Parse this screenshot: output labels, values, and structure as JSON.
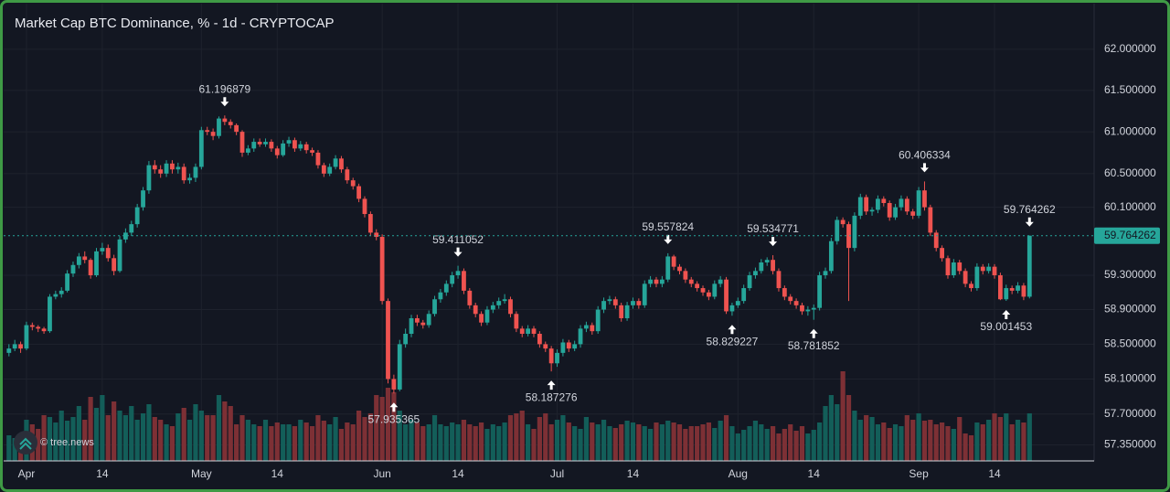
{
  "chart_data": {
    "type": "candlestick",
    "title": "Market Cap BTC Dominance, % - 1d - CRYPTOCAP",
    "watermark": "© tree.news",
    "log_scale": true,
    "grid": true,
    "up_color": "#26a69a",
    "down_color": "#ef5350",
    "volume_up_color": "#135e59",
    "volume_down_color": "#7d3035",
    "last_price_color": "#26a69a",
    "ylim": [
      57.17,
      62.56
    ],
    "yticks": [
      {
        "value": 62,
        "label": "62.000000"
      },
      {
        "value": 61.5,
        "label": "61.500000"
      },
      {
        "value": 61,
        "label": "61.000000"
      },
      {
        "value": 60.5,
        "label": "60.500000"
      },
      {
        "value": 60.1,
        "label": "60.100000"
      },
      {
        "value": 59.3,
        "label": "59.300000"
      },
      {
        "value": 58.9,
        "label": "58.900000"
      },
      {
        "value": 58.5,
        "label": "58.500000"
      },
      {
        "value": 58.1,
        "label": "58.100000"
      },
      {
        "value": 57.7,
        "label": "57.700000"
      },
      {
        "value": 57.35,
        "label": "57.350000"
      }
    ],
    "categories": [
      null,
      null,
      null,
      "Apr",
      null,
      null,
      null,
      null,
      null,
      null,
      null,
      null,
      null,
      null,
      null,
      null,
      "14",
      null,
      null,
      null,
      null,
      null,
      null,
      null,
      null,
      null,
      null,
      null,
      null,
      null,
      null,
      null,
      null,
      "May",
      null,
      null,
      null,
      null,
      null,
      null,
      null,
      null,
      null,
      null,
      null,
      null,
      "14",
      null,
      null,
      null,
      null,
      null,
      null,
      null,
      null,
      null,
      null,
      null,
      null,
      null,
      null,
      null,
      null,
      null,
      "Jun",
      null,
      null,
      null,
      null,
      null,
      null,
      null,
      null,
      null,
      null,
      null,
      null,
      "14",
      null,
      null,
      null,
      null,
      null,
      null,
      null,
      null,
      null,
      null,
      null,
      null,
      null,
      null,
      null,
      null,
      "Jul",
      null,
      null,
      null,
      null,
      null,
      null,
      null,
      null,
      null,
      null,
      null,
      null,
      "14",
      null,
      null,
      null,
      null,
      null,
      null,
      null,
      null,
      null,
      null,
      null,
      null,
      null,
      null,
      null,
      null,
      null,
      "Aug",
      null,
      null,
      null,
      null,
      null,
      null,
      null,
      null,
      null,
      null,
      null,
      null,
      "14",
      null,
      null,
      null,
      null,
      null,
      null,
      null,
      null,
      null,
      null,
      null,
      null,
      null,
      null,
      null,
      null,
      null,
      "Sep",
      null,
      null,
      null,
      null,
      null,
      null,
      null,
      null,
      null,
      null,
      null,
      null,
      "14",
      null,
      null,
      null,
      null,
      null,
      null
    ],
    "candles": [
      [
        58.4,
        58.5,
        58.36,
        58.45
      ],
      [
        58.45,
        58.55,
        58.42,
        58.5
      ],
      [
        58.5,
        58.53,
        58.4,
        58.45
      ],
      [
        58.45,
        58.76,
        58.43,
        58.72
      ],
      [
        58.72,
        58.75,
        58.66,
        58.7
      ],
      [
        58.7,
        58.72,
        58.64,
        58.68
      ],
      [
        58.68,
        58.7,
        58.62,
        58.65
      ],
      [
        58.65,
        59.08,
        58.63,
        59.05
      ],
      [
        59.05,
        59.12,
        59.02,
        59.08
      ],
      [
        59.08,
        59.16,
        59.04,
        59.12
      ],
      [
        59.12,
        59.36,
        59.1,
        59.32
      ],
      [
        59.32,
        59.46,
        59.28,
        59.42
      ],
      [
        59.42,
        59.56,
        59.38,
        59.52
      ],
      [
        59.52,
        59.58,
        59.44,
        59.48
      ],
      [
        59.48,
        59.5,
        59.26,
        59.3
      ],
      [
        59.3,
        59.62,
        59.28,
        59.58
      ],
      [
        59.58,
        59.68,
        59.54,
        59.62
      ],
      [
        59.62,
        59.66,
        59.46,
        59.5
      ],
      [
        59.5,
        59.54,
        59.3,
        59.35
      ],
      [
        59.35,
        59.76,
        59.33,
        59.72
      ],
      [
        59.72,
        59.85,
        59.68,
        59.8
      ],
      [
        59.8,
        59.94,
        59.76,
        59.9
      ],
      [
        59.9,
        60.14,
        59.86,
        60.1
      ],
      [
        60.1,
        60.34,
        60.06,
        60.3
      ],
      [
        60.3,
        60.65,
        60.26,
        60.6
      ],
      [
        60.6,
        60.66,
        60.5,
        60.55
      ],
      [
        60.55,
        60.6,
        60.45,
        60.5
      ],
      [
        60.5,
        60.66,
        60.46,
        60.62
      ],
      [
        60.62,
        60.66,
        60.5,
        60.55
      ],
      [
        60.55,
        60.63,
        60.5,
        60.58
      ],
      [
        60.58,
        60.62,
        60.38,
        60.42
      ],
      [
        60.42,
        60.5,
        60.38,
        60.45
      ],
      [
        60.45,
        60.62,
        60.4,
        60.58
      ],
      [
        60.58,
        61.06,
        60.55,
        61.02
      ],
      [
        61.02,
        61.06,
        60.96,
        61.0
      ],
      [
        61.0,
        61.04,
        60.9,
        60.95
      ],
      [
        60.95,
        61.185,
        60.92,
        61.16
      ],
      [
        61.16,
        61.196879,
        61.08,
        61.12
      ],
      [
        61.12,
        61.15,
        61.04,
        61.08
      ],
      [
        61.08,
        61.1,
        60.96,
        61.0
      ],
      [
        61.0,
        61.02,
        60.7,
        60.75
      ],
      [
        60.75,
        60.84,
        60.72,
        60.8
      ],
      [
        60.8,
        60.92,
        60.76,
        60.88
      ],
      [
        60.88,
        60.92,
        60.82,
        60.85
      ],
      [
        60.85,
        60.92,
        60.82,
        60.88
      ],
      [
        60.88,
        60.91,
        60.76,
        60.8
      ],
      [
        60.8,
        60.83,
        60.68,
        60.72
      ],
      [
        60.72,
        60.9,
        60.7,
        60.86
      ],
      [
        60.86,
        60.94,
        60.82,
        60.9
      ],
      [
        60.9,
        60.93,
        60.76,
        60.8
      ],
      [
        60.8,
        60.89,
        60.77,
        60.85
      ],
      [
        60.85,
        60.88,
        60.74,
        60.78
      ],
      [
        60.78,
        60.81,
        60.71,
        60.75
      ],
      [
        60.75,
        60.78,
        60.56,
        60.6
      ],
      [
        60.6,
        60.63,
        60.46,
        60.5
      ],
      [
        60.5,
        60.62,
        60.47,
        60.58
      ],
      [
        60.58,
        60.72,
        60.55,
        60.68
      ],
      [
        60.68,
        60.71,
        60.51,
        60.55
      ],
      [
        60.55,
        60.58,
        60.38,
        60.42
      ],
      [
        60.42,
        60.45,
        60.31,
        60.35
      ],
      [
        60.35,
        60.38,
        60.16,
        60.2
      ],
      [
        60.2,
        60.23,
        59.98,
        60.02
      ],
      [
        60.02,
        60.05,
        59.76,
        59.8
      ],
      [
        59.8,
        59.84,
        59.71,
        59.75
      ],
      [
        59.75,
        59.78,
        58.96,
        59.0
      ],
      [
        59.0,
        59.03,
        58.05,
        58.1
      ],
      [
        58.1,
        58.15,
        57.935365,
        57.98
      ],
      [
        57.98,
        58.55,
        57.96,
        58.5
      ],
      [
        58.5,
        58.68,
        58.46,
        58.62
      ],
      [
        58.62,
        58.84,
        58.58,
        58.8
      ],
      [
        58.8,
        58.84,
        58.71,
        58.75
      ],
      [
        58.75,
        58.78,
        58.68,
        58.72
      ],
      [
        58.72,
        58.89,
        58.69,
        58.85
      ],
      [
        58.85,
        59.06,
        58.82,
        59.02
      ],
      [
        59.02,
        59.14,
        58.98,
        59.1
      ],
      [
        59.1,
        59.24,
        59.06,
        59.2
      ],
      [
        59.2,
        59.34,
        59.16,
        59.3
      ],
      [
        59.3,
        59.411052,
        59.26,
        59.35
      ],
      [
        59.35,
        59.38,
        59.08,
        59.12
      ],
      [
        59.12,
        59.15,
        58.91,
        58.95
      ],
      [
        58.95,
        58.98,
        58.81,
        58.85
      ],
      [
        58.85,
        58.88,
        58.71,
        58.75
      ],
      [
        58.75,
        58.94,
        58.72,
        58.9
      ],
      [
        58.9,
        58.99,
        58.86,
        58.95
      ],
      [
        58.95,
        59.04,
        58.91,
        59.0
      ],
      [
        59.0,
        59.08,
        58.97,
        59.02
      ],
      [
        59.02,
        59.05,
        58.81,
        58.85
      ],
      [
        58.85,
        58.88,
        58.64,
        58.68
      ],
      [
        58.68,
        58.71,
        58.58,
        58.62
      ],
      [
        58.62,
        58.72,
        58.59,
        58.68
      ],
      [
        58.68,
        58.71,
        58.58,
        58.62
      ],
      [
        58.62,
        58.65,
        58.46,
        58.5
      ],
      [
        58.5,
        58.53,
        58.41,
        58.45
      ],
      [
        58.45,
        58.48,
        58.187276,
        58.28
      ],
      [
        58.28,
        58.44,
        58.24,
        58.4
      ],
      [
        58.4,
        58.56,
        58.36,
        58.52
      ],
      [
        58.52,
        58.55,
        58.41,
        58.45
      ],
      [
        58.45,
        58.54,
        58.42,
        58.5
      ],
      [
        58.5,
        58.72,
        58.46,
        58.68
      ],
      [
        58.68,
        58.76,
        58.64,
        58.72
      ],
      [
        58.72,
        58.75,
        58.61,
        58.65
      ],
      [
        58.65,
        58.94,
        58.62,
        58.9
      ],
      [
        58.9,
        59.04,
        58.86,
        59.0
      ],
      [
        59.0,
        59.06,
        58.96,
        59.02
      ],
      [
        59.02,
        59.05,
        58.91,
        58.95
      ],
      [
        58.95,
        58.98,
        58.76,
        58.8
      ],
      [
        58.8,
        58.99,
        58.77,
        58.95
      ],
      [
        58.95,
        59.04,
        58.91,
        59.0
      ],
      [
        59.0,
        59.03,
        58.91,
        58.95
      ],
      [
        58.95,
        59.24,
        58.92,
        59.2
      ],
      [
        59.2,
        59.29,
        59.16,
        59.25
      ],
      [
        59.25,
        59.28,
        59.16,
        59.2
      ],
      [
        59.2,
        59.29,
        59.16,
        59.25
      ],
      [
        59.25,
        59.557824,
        59.22,
        59.52
      ],
      [
        59.52,
        59.54,
        59.36,
        59.4
      ],
      [
        59.4,
        59.43,
        59.31,
        59.35
      ],
      [
        59.35,
        59.38,
        59.21,
        59.25
      ],
      [
        59.25,
        59.28,
        59.16,
        59.2
      ],
      [
        59.2,
        59.23,
        59.11,
        59.15
      ],
      [
        59.15,
        59.18,
        59.06,
        59.1
      ],
      [
        59.1,
        59.13,
        59.01,
        59.05
      ],
      [
        59.05,
        59.24,
        59.02,
        59.2
      ],
      [
        59.2,
        59.29,
        59.16,
        59.25
      ],
      [
        59.25,
        59.28,
        58.85,
        58.88
      ],
      [
        58.88,
        58.98,
        58.829227,
        58.95
      ],
      [
        58.95,
        59.04,
        58.92,
        59.0
      ],
      [
        59.0,
        59.19,
        58.97,
        59.15
      ],
      [
        59.15,
        59.34,
        59.12,
        59.3
      ],
      [
        59.3,
        59.39,
        59.26,
        59.35
      ],
      [
        59.35,
        59.49,
        59.32,
        59.45
      ],
      [
        59.45,
        59.51,
        59.41,
        59.48
      ],
      [
        59.48,
        59.534771,
        59.31,
        59.35
      ],
      [
        59.35,
        59.38,
        59.11,
        59.15
      ],
      [
        59.15,
        59.18,
        59.01,
        59.05
      ],
      [
        59.05,
        59.08,
        58.96,
        59.0
      ],
      [
        59.0,
        59.03,
        58.91,
        58.95
      ],
      [
        58.95,
        58.98,
        58.84,
        58.88
      ],
      [
        58.88,
        58.94,
        58.83,
        58.9
      ],
      [
        58.9,
        58.96,
        58.781852,
        58.92
      ],
      [
        58.92,
        59.34,
        58.89,
        59.3
      ],
      [
        59.3,
        59.39,
        59.26,
        59.35
      ],
      [
        59.35,
        59.74,
        59.32,
        59.7
      ],
      [
        59.7,
        59.99,
        59.66,
        59.95
      ],
      [
        59.95,
        59.98,
        59.86,
        59.9
      ],
      [
        59.9,
        59.93,
        59.0,
        59.62
      ],
      [
        59.62,
        60.04,
        59.58,
        60.0
      ],
      [
        60.0,
        60.26,
        59.96,
        60.22
      ],
      [
        60.22,
        60.25,
        60.01,
        60.05
      ],
      [
        60.05,
        60.1,
        60.0,
        60.07
      ],
      [
        60.07,
        60.24,
        60.03,
        60.2
      ],
      [
        60.2,
        60.23,
        60.11,
        60.15
      ],
      [
        60.15,
        60.18,
        59.94,
        59.98
      ],
      [
        59.98,
        60.14,
        59.95,
        60.1
      ],
      [
        60.1,
        60.24,
        60.06,
        60.2
      ],
      [
        60.2,
        60.23,
        60.01,
        60.05
      ],
      [
        60.05,
        60.08,
        59.96,
        60.0
      ],
      [
        60.0,
        60.34,
        59.97,
        60.3
      ],
      [
        60.3,
        60.406334,
        60.06,
        60.1
      ],
      [
        60.1,
        60.13,
        59.76,
        59.8
      ],
      [
        59.8,
        59.83,
        59.58,
        59.62
      ],
      [
        59.62,
        59.65,
        59.46,
        59.5
      ],
      [
        59.5,
        59.53,
        59.26,
        59.3
      ],
      [
        59.3,
        59.49,
        59.27,
        59.45
      ],
      [
        59.45,
        59.48,
        59.31,
        59.35
      ],
      [
        59.35,
        59.38,
        59.16,
        59.2
      ],
      [
        59.2,
        59.23,
        59.11,
        59.15
      ],
      [
        59.15,
        59.44,
        59.12,
        59.4
      ],
      [
        59.4,
        59.43,
        59.31,
        59.35
      ],
      [
        59.35,
        59.44,
        59.32,
        59.4
      ],
      [
        59.4,
        59.43,
        59.26,
        59.3
      ],
      [
        59.3,
        59.33,
        59.01,
        59.02
      ],
      [
        59.02,
        59.19,
        59.001453,
        59.15
      ],
      [
        59.15,
        59.18,
        59.08,
        59.12
      ],
      [
        59.12,
        59.22,
        59.09,
        59.18
      ],
      [
        59.18,
        59.21,
        59.01,
        59.05
      ],
      [
        59.05,
        59.764262,
        59.03,
        59.764262
      ]
    ],
    "volume": [
      28,
      25,
      30,
      45,
      40,
      35,
      50,
      48,
      42,
      55,
      44,
      48,
      60,
      45,
      70,
      58,
      72,
      50,
      65,
      55,
      50,
      60,
      45,
      52,
      62,
      48,
      45,
      40,
      38,
      52,
      58,
      45,
      62,
      55,
      50,
      50,
      72,
      65,
      60,
      40,
      50,
      45,
      40,
      38,
      45,
      38,
      42,
      40,
      40,
      38,
      45,
      42,
      38,
      50,
      44,
      40,
      48,
      35,
      42,
      40,
      55,
      48,
      52,
      72,
      70,
      80,
      75,
      55,
      40,
      45,
      42,
      38,
      40,
      50,
      40,
      38,
      42,
      40,
      45,
      40,
      38,
      42,
      35,
      40,
      38,
      42,
      50,
      52,
      55,
      40,
      35,
      48,
      52,
      40,
      45,
      50,
      42,
      38,
      35,
      48,
      42,
      40,
      45,
      38,
      36,
      40,
      44,
      42,
      40,
      38,
      35,
      42,
      40,
      44,
      42,
      40,
      35,
      38,
      38,
      40,
      42,
      36,
      44,
      50,
      38,
      30,
      34,
      38,
      44,
      40,
      35,
      38,
      30,
      35,
      40,
      33,
      38,
      30,
      34,
      42,
      60,
      72,
      62,
      98,
      72,
      55,
      45,
      50,
      48,
      40,
      42,
      36,
      40,
      38,
      50,
      45,
      52,
      44,
      45,
      40,
      42,
      38,
      35,
      48,
      30,
      28,
      42,
      40,
      45,
      52,
      48,
      52,
      40,
      45,
      42,
      52
    ],
    "annotations": [
      {
        "index": 37,
        "value": 61.196879
      },
      {
        "index": 66,
        "value": 57.935365
      },
      {
        "index": 77,
        "value": 59.411052
      },
      {
        "index": 93,
        "value": 58.187276
      },
      {
        "index": 113,
        "value": 59.557824
      },
      {
        "index": 124,
        "value": 58.829227
      },
      {
        "index": 131,
        "value": 59.534771
      },
      {
        "index": 138,
        "value": 58.781852
      },
      {
        "index": 157,
        "value": 60.406334
      },
      {
        "index": 171,
        "value": 59.001453
      },
      {
        "index": 175,
        "value": 59.764262
      }
    ]
  }
}
